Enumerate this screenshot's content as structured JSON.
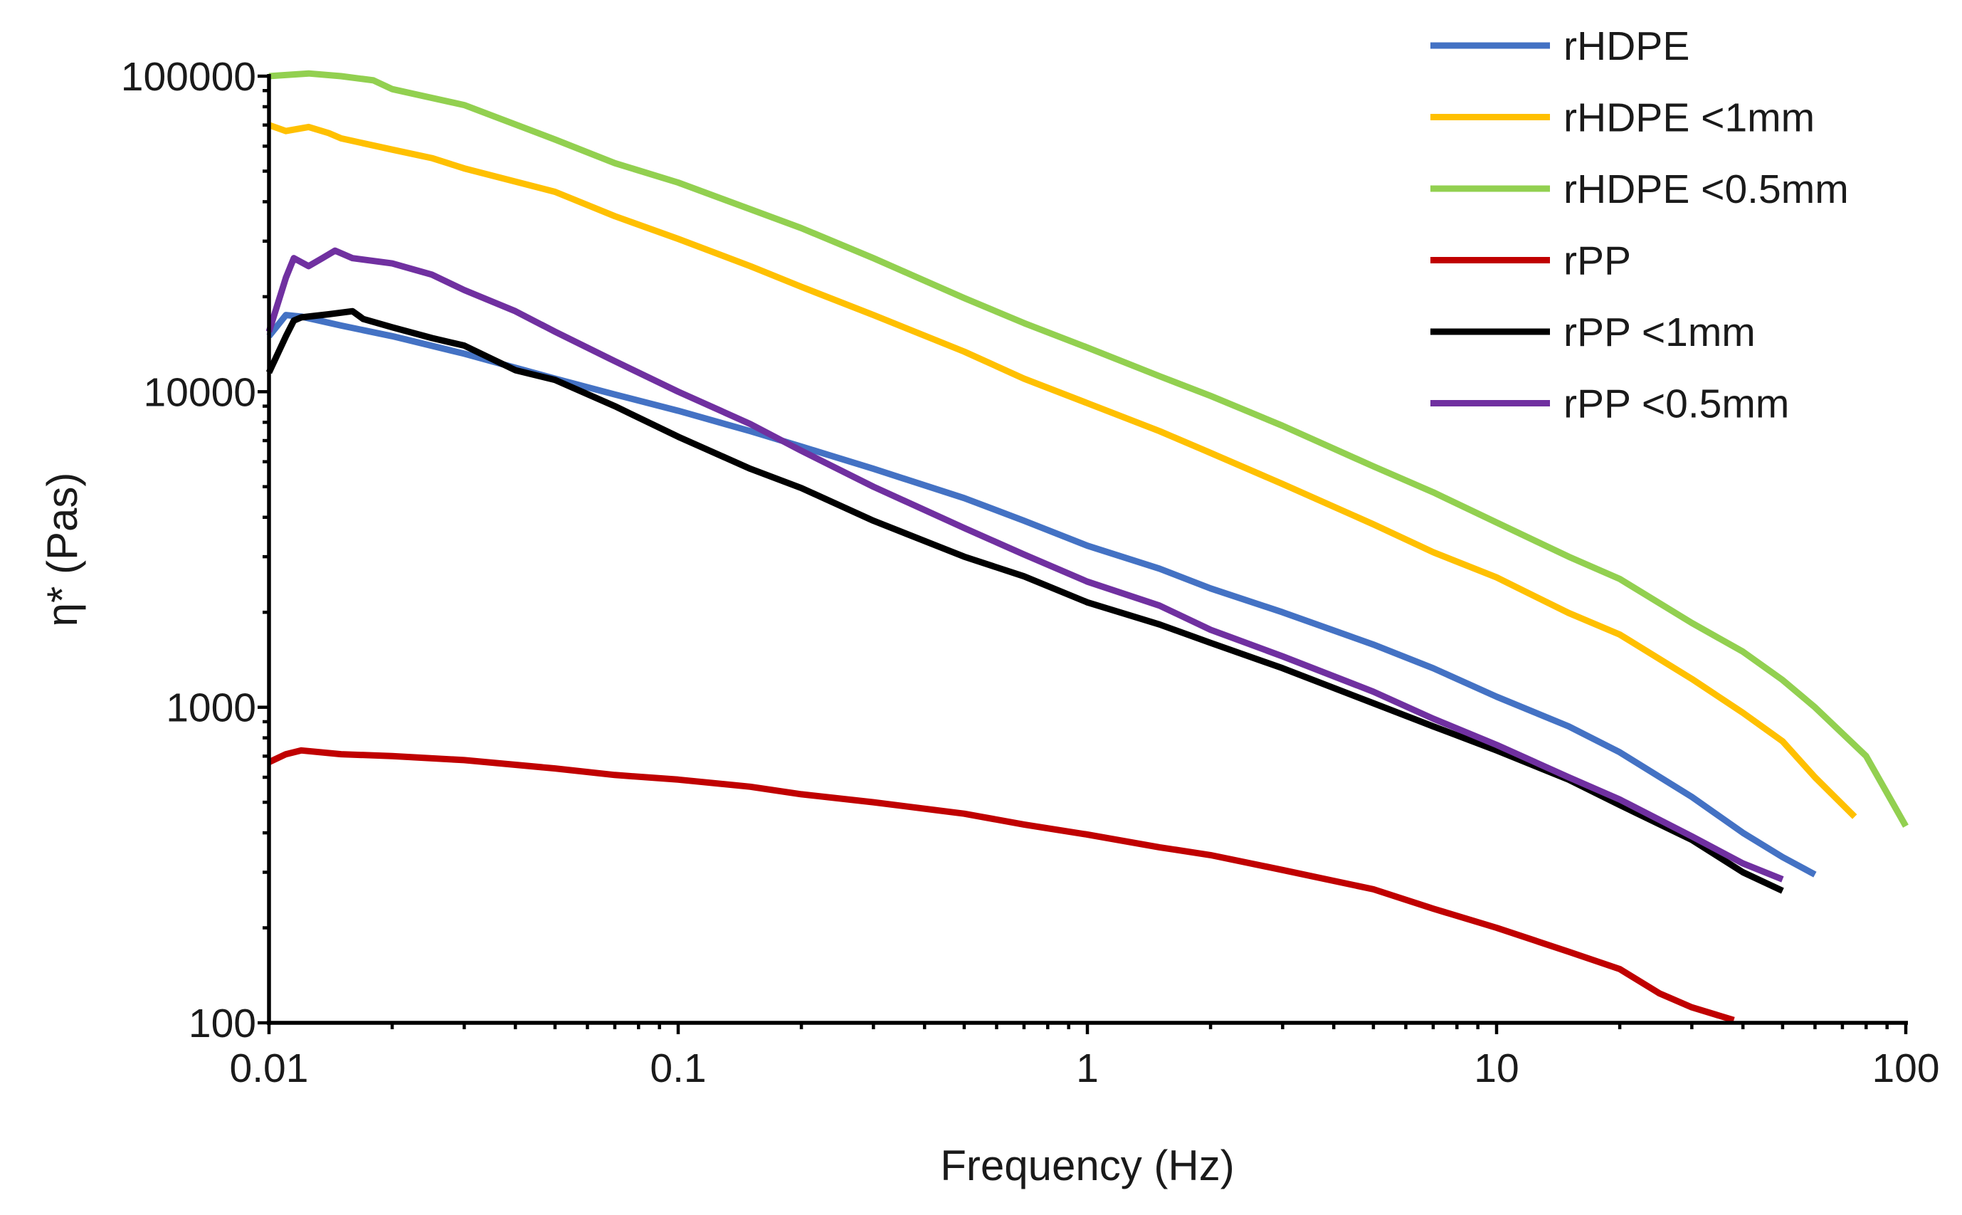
{
  "chart_data": {
    "type": "line",
    "title": "",
    "xlabel": "Frequency (Hz)",
    "ylabel": "η* (Pas)",
    "xscale": "log",
    "yscale": "log",
    "xlim": [
      0.01,
      100
    ],
    "ylim": [
      100,
      100000
    ],
    "x_tick_labels": [
      {
        "value": 0.01,
        "label": "0.01"
      },
      {
        "value": 0.1,
        "label": "0.1"
      },
      {
        "value": 1,
        "label": "1"
      },
      {
        "value": 10,
        "label": "10"
      },
      {
        "value": 100,
        "label": "100"
      }
    ],
    "y_tick_labels": [
      {
        "value": 100,
        "label": "100"
      },
      {
        "value": 1000,
        "label": "1000"
      },
      {
        "value": 10000,
        "label": "10000"
      },
      {
        "value": 100000,
        "label": "100000"
      }
    ],
    "legend_position": "top-right",
    "grid": false,
    "series": [
      {
        "name": "rHDPE",
        "color": "#4472C4",
        "points": [
          [
            0.01,
            15000
          ],
          [
            0.011,
            17500
          ],
          [
            0.012,
            17300
          ],
          [
            0.015,
            16200
          ],
          [
            0.02,
            15000
          ],
          [
            0.03,
            13200
          ],
          [
            0.05,
            11000
          ],
          [
            0.07,
            9800
          ],
          [
            0.1,
            8700
          ],
          [
            0.15,
            7500
          ],
          [
            0.2,
            6700
          ],
          [
            0.3,
            5700
          ],
          [
            0.5,
            4600
          ],
          [
            0.7,
            3900
          ],
          [
            1,
            3250
          ],
          [
            1.5,
            2750
          ],
          [
            2,
            2380
          ],
          [
            3,
            2000
          ],
          [
            5,
            1580
          ],
          [
            7,
            1330
          ],
          [
            10,
            1080
          ],
          [
            15,
            870
          ],
          [
            20,
            720
          ],
          [
            30,
            520
          ],
          [
            40,
            400
          ],
          [
            50,
            335
          ],
          [
            60,
            295
          ]
        ]
      },
      {
        "name": "rHDPE <1mm",
        "color": "#FFC000",
        "points": [
          [
            0.01,
            70000
          ],
          [
            0.011,
            67000
          ],
          [
            0.0125,
            69000
          ],
          [
            0.014,
            66000
          ],
          [
            0.015,
            63500
          ],
          [
            0.02,
            58500
          ],
          [
            0.025,
            55000
          ],
          [
            0.03,
            51000
          ],
          [
            0.05,
            43000
          ],
          [
            0.07,
            36000
          ],
          [
            0.1,
            30500
          ],
          [
            0.15,
            25000
          ],
          [
            0.2,
            21500
          ],
          [
            0.3,
            17500
          ],
          [
            0.5,
            13400
          ],
          [
            0.7,
            11000
          ],
          [
            1,
            9200
          ],
          [
            1.5,
            7500
          ],
          [
            2,
            6400
          ],
          [
            3,
            5100
          ],
          [
            5,
            3800
          ],
          [
            7,
            3100
          ],
          [
            10,
            2580
          ],
          [
            15,
            1990
          ],
          [
            20,
            1700
          ],
          [
            30,
            1230
          ],
          [
            40,
            960
          ],
          [
            50,
            780
          ],
          [
            60,
            600
          ],
          [
            75,
            450
          ]
        ]
      },
      {
        "name": "rHDPE <0.5mm",
        "color": "#92D050",
        "points": [
          [
            0.01,
            100000
          ],
          [
            0.0125,
            102000
          ],
          [
            0.015,
            100000
          ],
          [
            0.018,
            97000
          ],
          [
            0.02,
            91000
          ],
          [
            0.03,
            81000
          ],
          [
            0.05,
            63000
          ],
          [
            0.07,
            53000
          ],
          [
            0.1,
            46000
          ],
          [
            0.2,
            33000
          ],
          [
            0.3,
            26500
          ],
          [
            0.5,
            19800
          ],
          [
            0.7,
            16500
          ],
          [
            1,
            13800
          ],
          [
            1.5,
            11200
          ],
          [
            2,
            9700
          ],
          [
            3,
            7800
          ],
          [
            5,
            5800
          ],
          [
            7,
            4800
          ],
          [
            10,
            3850
          ],
          [
            15,
            3000
          ],
          [
            20,
            2550
          ],
          [
            30,
            1850
          ],
          [
            40,
            1500
          ],
          [
            50,
            1220
          ],
          [
            60,
            1000
          ],
          [
            80,
            700
          ],
          [
            100,
            420
          ]
        ]
      },
      {
        "name": "rPP",
        "color": "#C00000",
        "points": [
          [
            0.01,
            670
          ],
          [
            0.011,
            710
          ],
          [
            0.012,
            730
          ],
          [
            0.015,
            710
          ],
          [
            0.02,
            700
          ],
          [
            0.03,
            680
          ],
          [
            0.05,
            640
          ],
          [
            0.07,
            610
          ],
          [
            0.1,
            590
          ],
          [
            0.15,
            560
          ],
          [
            0.2,
            530
          ],
          [
            0.3,
            500
          ],
          [
            0.5,
            460
          ],
          [
            0.7,
            425
          ],
          [
            1,
            395
          ],
          [
            1.5,
            360
          ],
          [
            2,
            340
          ],
          [
            3,
            305
          ],
          [
            5,
            265
          ],
          [
            7,
            230
          ],
          [
            10,
            200
          ],
          [
            15,
            168
          ],
          [
            20,
            148
          ],
          [
            25,
            124
          ],
          [
            30,
            112
          ],
          [
            38,
            102
          ]
        ]
      },
      {
        "name": "rPP <1mm",
        "color": "#000000",
        "points": [
          [
            0.01,
            11500
          ],
          [
            0.011,
            15000
          ],
          [
            0.0115,
            16800
          ],
          [
            0.012,
            17200
          ],
          [
            0.014,
            17600
          ],
          [
            0.016,
            18000
          ],
          [
            0.017,
            17000
          ],
          [
            0.02,
            16000
          ],
          [
            0.025,
            14800
          ],
          [
            0.03,
            14000
          ],
          [
            0.04,
            11700
          ],
          [
            0.05,
            10900
          ],
          [
            0.07,
            9000
          ],
          [
            0.1,
            7200
          ],
          [
            0.15,
            5700
          ],
          [
            0.2,
            4950
          ],
          [
            0.3,
            3900
          ],
          [
            0.5,
            3000
          ],
          [
            0.7,
            2600
          ],
          [
            1,
            2150
          ],
          [
            1.5,
            1830
          ],
          [
            2,
            1600
          ],
          [
            3,
            1330
          ],
          [
            5,
            1030
          ],
          [
            7,
            870
          ],
          [
            10,
            730
          ],
          [
            15,
            590
          ],
          [
            20,
            490
          ],
          [
            30,
            380
          ],
          [
            40,
            300
          ],
          [
            50,
            262
          ]
        ]
      },
      {
        "name": "rPP <0.5mm",
        "color": "#7030A0",
        "points": [
          [
            0.01,
            15500
          ],
          [
            0.011,
            23000
          ],
          [
            0.0115,
            26500
          ],
          [
            0.0125,
            25000
          ],
          [
            0.0135,
            26500
          ],
          [
            0.0145,
            28000
          ],
          [
            0.016,
            26500
          ],
          [
            0.02,
            25500
          ],
          [
            0.025,
            23500
          ],
          [
            0.03,
            21000
          ],
          [
            0.04,
            18000
          ],
          [
            0.05,
            15500
          ],
          [
            0.07,
            12500
          ],
          [
            0.1,
            10000
          ],
          [
            0.15,
            7900
          ],
          [
            0.2,
            6500
          ],
          [
            0.3,
            5000
          ],
          [
            0.5,
            3700
          ],
          [
            0.7,
            3050
          ],
          [
            1,
            2500
          ],
          [
            1.5,
            2100
          ],
          [
            2,
            1760
          ],
          [
            3,
            1450
          ],
          [
            5,
            1120
          ],
          [
            7,
            920
          ],
          [
            10,
            760
          ],
          [
            15,
            600
          ],
          [
            20,
            510
          ],
          [
            30,
            390
          ],
          [
            40,
            320
          ],
          [
            50,
            285
          ]
        ]
      }
    ]
  }
}
